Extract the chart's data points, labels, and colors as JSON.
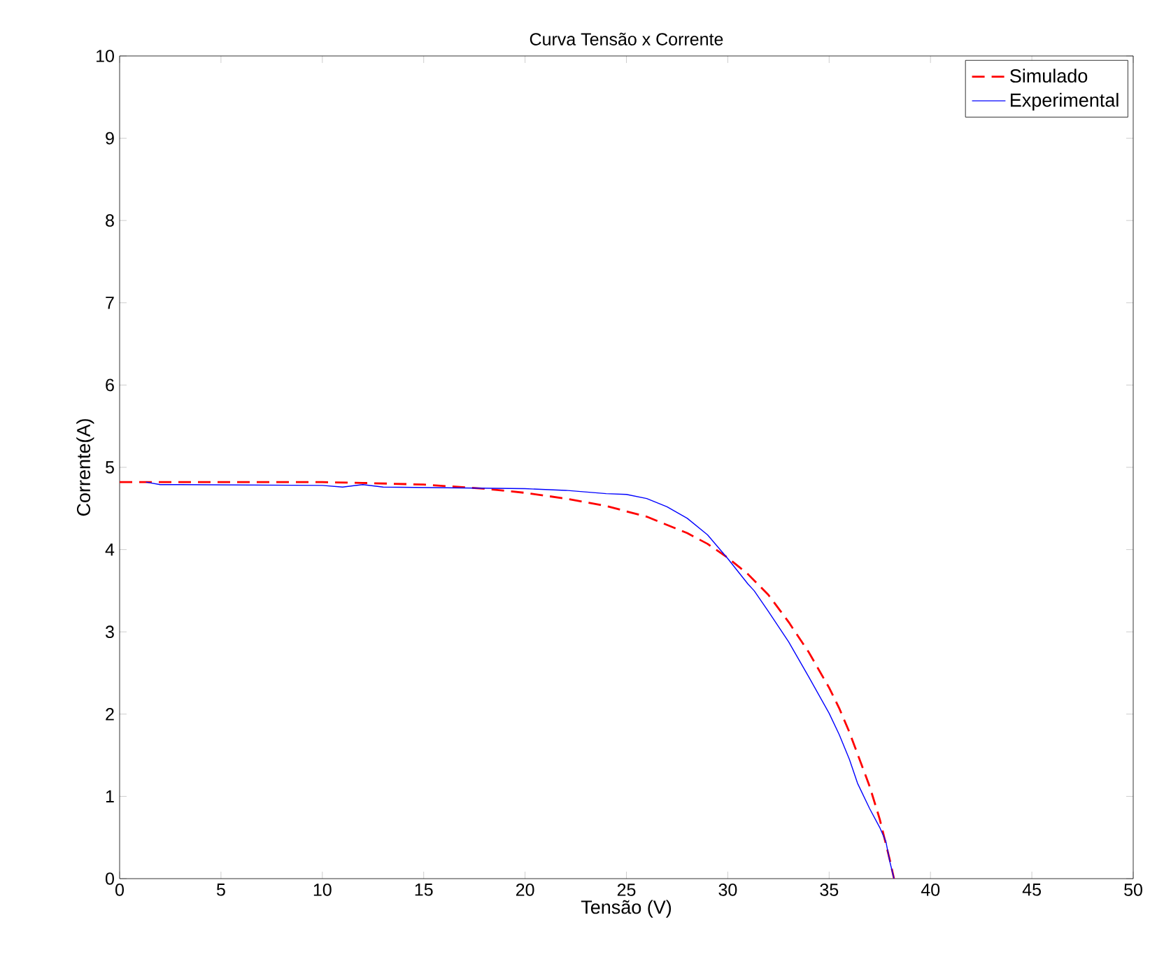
{
  "chart_data": {
    "type": "line",
    "title": "Curva Tensão x Corrente",
    "xlabel": "Tensão (V)",
    "ylabel": "Corrente(A)",
    "xlim": [
      0,
      50
    ],
    "ylim": [
      0,
      10
    ],
    "xticks": [
      0,
      5,
      10,
      15,
      20,
      25,
      30,
      35,
      40,
      45,
      50
    ],
    "yticks": [
      0,
      1,
      2,
      3,
      4,
      5,
      6,
      7,
      8,
      9,
      10
    ],
    "grid": false,
    "legend": "top right",
    "series": [
      {
        "name": "Simulado",
        "color": "#ff0000",
        "line_style": "dashed",
        "x": [
          0,
          5,
          10,
          12,
          15,
          18,
          20,
          22,
          24,
          26,
          28,
          29,
          30,
          31,
          32,
          33,
          34,
          35,
          35.5,
          36,
          36.5,
          37,
          37.5,
          38,
          38.2
        ],
        "values": [
          4.82,
          4.82,
          4.82,
          4.81,
          4.79,
          4.74,
          4.69,
          4.62,
          4.53,
          4.4,
          4.2,
          4.07,
          3.9,
          3.7,
          3.45,
          3.12,
          2.75,
          2.32,
          2.07,
          1.78,
          1.45,
          1.12,
          0.72,
          0.22,
          0
        ]
      },
      {
        "name": "Experimental",
        "color": "#0000ff",
        "line_style": "solid",
        "x": [
          1.3,
          2,
          3,
          10,
          11,
          12,
          13,
          20,
          21,
          22,
          24,
          25,
          26,
          27,
          28,
          29,
          30,
          31,
          31.3,
          32,
          33,
          34,
          35,
          35.5,
          36,
          36.4,
          37,
          37.5,
          37.8,
          38,
          38.2
        ],
        "values": [
          4.82,
          4.79,
          4.79,
          4.78,
          4.76,
          4.79,
          4.76,
          4.74,
          4.73,
          4.72,
          4.68,
          4.67,
          4.62,
          4.52,
          4.38,
          4.18,
          3.89,
          3.58,
          3.5,
          3.25,
          2.88,
          2.45,
          2.01,
          1.75,
          1.45,
          1.16,
          0.85,
          0.62,
          0.45,
          0.2,
          0
        ]
      }
    ]
  }
}
